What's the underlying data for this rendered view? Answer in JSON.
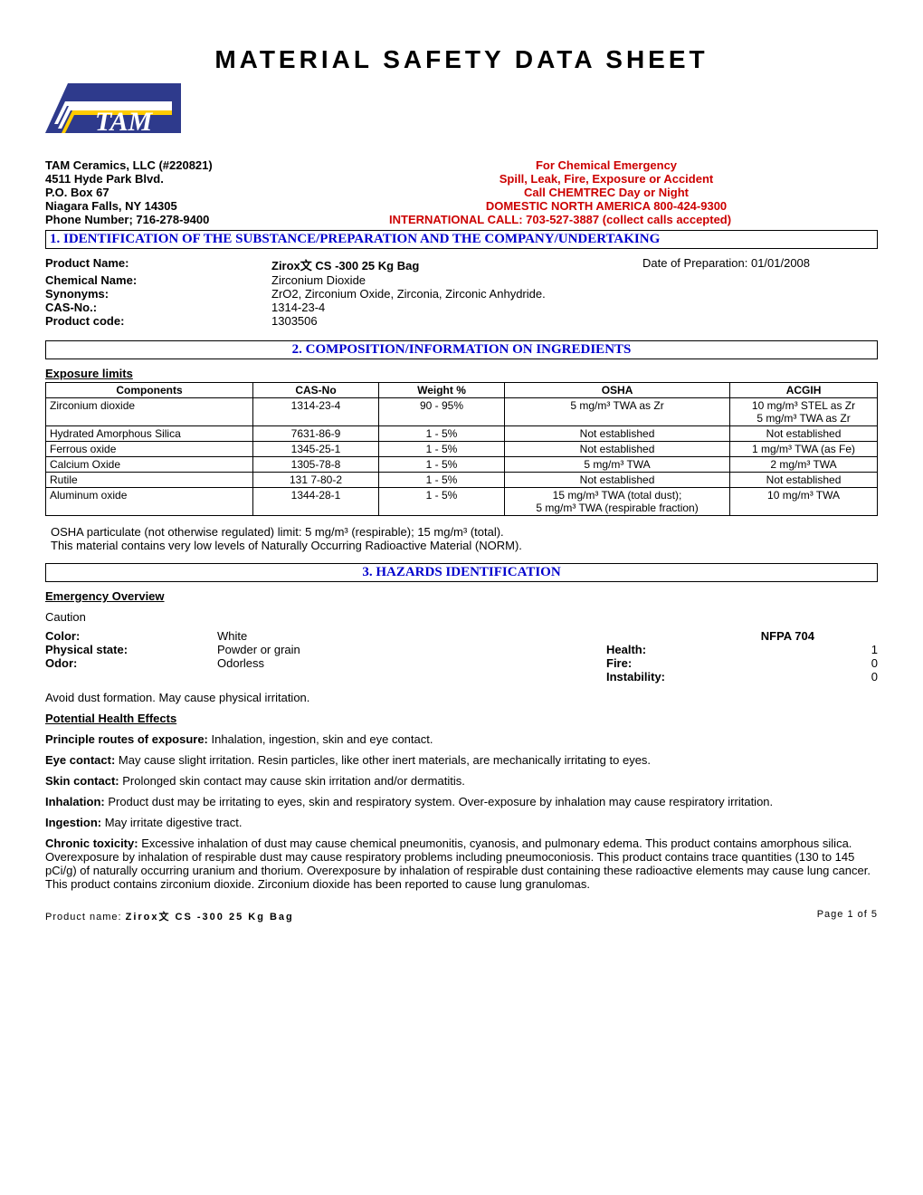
{
  "doc_title": "MATERIAL  SAFETY  DATA  SHEET",
  "logo": {
    "bg": "#2e3a8c",
    "text": "TAM",
    "stripe_colors": [
      "#ffffff",
      "#ffffff",
      "#ffcc00"
    ]
  },
  "company": {
    "left": [
      "TAM  Ceramics, LLC  (#220821)",
      "4511 Hyde Park Blvd.",
      "P.O. Box  67",
      "Niagara Falls, NY 14305",
      "Phone Number; 716-278-9400"
    ],
    "right": [
      "For Chemical Emergency",
      "Spill, Leak, Fire, Exposure or Accident",
      "Call CHEMTREC  Day or Night",
      "DOMESTIC NORTH AMERICA 800-424-9300",
      "INTERNATIONAL CALL:  703-527-3887  (collect calls accepted)"
    ]
  },
  "section1": {
    "header": "1. IDENTIFICATION OF THE SUBSTANCE/PREPARATION AND THE COMPANY/UNDERTAKING",
    "rows": {
      "product_name_label": "Product Name:",
      "product_name": "Zirox文 CS -300 25 Kg Bag",
      "date_label": "Date of Preparation: 01/01/2008",
      "chemical_name_label": "Chemical Name:",
      "chemical_name": "Zirconium Dioxide",
      "synonyms_label": "Synonyms:",
      "synonyms": "ZrO2, Zirconium Oxide, Zirconia, Zirconic Anhydride.",
      "cas_label": "CAS-No.:",
      "cas": "1314-23-4",
      "code_label": "Product code:",
      "code": "1303506"
    }
  },
  "section2": {
    "header": "2. COMPOSITION/INFORMATION ON INGREDIENTS",
    "exposure_limits": "Exposure limits",
    "columns": [
      "Components",
      "CAS-No",
      "Weight %",
      "OSHA",
      "ACGIH"
    ],
    "rows": [
      [
        "Zirconium dioxide",
        "1314-23-4",
        "90 - 95%",
        "5 mg/m³ TWA as Zr",
        "10 mg/m³ STEL as Zr\n5 mg/m³ TWA as Zr"
      ],
      [
        "Hydrated Amorphous Silica",
        "7631-86-9",
        "1 - 5%",
        "Not established",
        "Not established"
      ],
      [
        "Ferrous oxide",
        "1345-25-1",
        "1 - 5%",
        "Not established",
        "1 mg/m³ TWA (as Fe)"
      ],
      [
        "Calcium Oxide",
        "1305-78-8",
        "1 - 5%",
        "5 mg/m³ TWA",
        "2 mg/m³ TWA"
      ],
      [
        "Rutile",
        "131 7-80-2",
        "1 - 5%",
        "Not established",
        "Not established"
      ],
      [
        "Aluminum oxide",
        "1344-28-1",
        "1 - 5%",
        "15 mg/m³ TWA (total dust);\n5 mg/m³ TWA (respirable fraction)",
        "10 mg/m³ TWA"
      ]
    ],
    "note1": "OSHA particulate (not otherwise regulated) limit: 5 mg/m³ (respirable); 15 mg/m³ (total).",
    "note2": "This material contains very low levels of Naturally Occurring Radioactive Material (NORM)."
  },
  "section3": {
    "header": "3. HAZARDS IDENTIFICATION",
    "emergency_overview": "Emergency Overview",
    "caution": "Caution",
    "nfpa_title": "NFPA 704",
    "props": {
      "color_label": "Color:",
      "color": "White",
      "state_label": "Physical state:",
      "state": "Powder or grain",
      "odor_label": "Odor:",
      "odor": "Odorless"
    },
    "nfpa": {
      "health_label": "Health:",
      "health": "1",
      "fire_label": "Fire:",
      "fire": "0",
      "instab_label": "Instability:",
      "instab": "0"
    },
    "avoid": "Avoid dust formation. May cause physical irritation.",
    "potential": "Potential Health Effects",
    "routes_label": "Principle routes of exposure:",
    "routes": " Inhalation, ingestion, skin and eye contact.",
    "eye_label": "Eye contact:",
    "eye": " May cause slight irritation. Resin particles, like other inert materials, are mechanically irritating to eyes.",
    "skin_label": "Skin contact:",
    "skin": " Prolonged skin contact may cause skin irritation and/or dermatitis.",
    "inhal_label": "Inhalation:",
    "inhal": " Product dust may be irritating to eyes, skin and respiratory system. Over-exposure by inhalation may cause respiratory irritation.",
    "ingest_label": "Ingestion:",
    "ingest": " May irritate digestive tract.",
    "chronic_label": "Chronic toxicity:",
    "chronic": " Excessive inhalation of dust may cause chemical pneumonitis, cyanosis, and pulmonary edema. This product contains amorphous silica. Overexposure by inhalation of respirable dust may cause respiratory problems including pneumoconiosis. This product contains trace quantities (130 to 145 pCi/g) of naturally occurring uranium and thorium. Overexposure by inhalation of respirable dust containing these radioactive elements may cause lung cancer. This product contains zirconium dioxide. Zirconium dioxide has been reported to cause lung granulomas."
  },
  "footer": {
    "product_label": "Product name:",
    "product_name": "Zirox文 CS -300 25 Kg Bag",
    "page": "Page 1 of 5"
  }
}
